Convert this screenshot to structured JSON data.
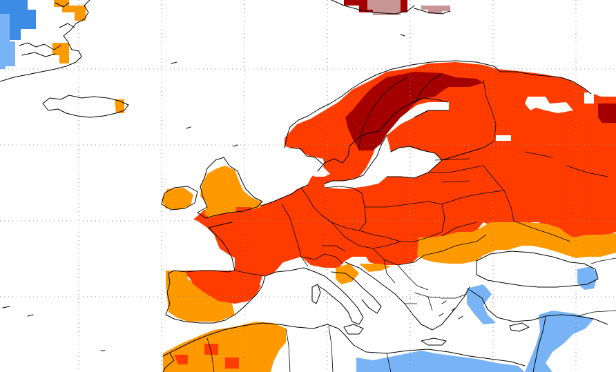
{
  "map": {
    "type": "temperature anomaly map",
    "region": "Europe",
    "legend_shown": false,
    "text_labels": [],
    "anomaly_colors": {
      "dark_red": "#a50000",
      "red": "#ff3c00",
      "orange": "#ff9900",
      "pink": "#c89696",
      "light_blue": "#78b4f5",
      "blue": "#3c8ce6",
      "land_outline": "#000000",
      "background": "#ffffff",
      "grid": "#8a8a8a"
    }
  }
}
